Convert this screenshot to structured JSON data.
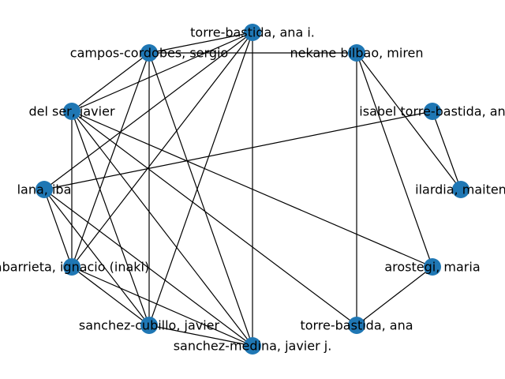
{
  "graph": {
    "colors": {
      "node": "#1f77b4",
      "edge": "#000000",
      "label": "#000000",
      "background": "#ffffff"
    },
    "nodes": [
      {
        "id": "torre_bastida_ana_i",
        "label": "torre-bastida, ana i."
      },
      {
        "id": "campos_cordobes",
        "label": "campos-cordobes, sergio"
      },
      {
        "id": "nekane_bilbao",
        "label": "nekane bilbao, miren"
      },
      {
        "id": "del_ser",
        "label": "del ser, javier"
      },
      {
        "id": "isabel_torre_bastida",
        "label": "isabel torre-bastida, an"
      },
      {
        "id": "lana",
        "label": "lana, iba"
      },
      {
        "id": "ilardia",
        "label": "ilardia, maiten"
      },
      {
        "id": "abarrieta",
        "label": "abarrieta, ignacio (inaki)"
      },
      {
        "id": "arostegi",
        "label": "arostegi, maria"
      },
      {
        "id": "sanchez_cubillo",
        "label": "sanchez-cubillo, javier"
      },
      {
        "id": "torre_bastida_ana",
        "label": "torre-bastida, ana"
      },
      {
        "id": "sanchez_medina",
        "label": "sanchez-medina, javier j."
      }
    ],
    "edges": [
      [
        "torre_bastida_ana_i",
        "campos_cordobes"
      ],
      [
        "torre_bastida_ana_i",
        "del_ser"
      ],
      [
        "torre_bastida_ana_i",
        "lana"
      ],
      [
        "torre_bastida_ana_i",
        "abarrieta"
      ],
      [
        "torre_bastida_ana_i",
        "sanchez_cubillo"
      ],
      [
        "torre_bastida_ana_i",
        "sanchez_medina"
      ],
      [
        "campos_cordobes",
        "nekane_bilbao"
      ],
      [
        "campos_cordobes",
        "del_ser"
      ],
      [
        "campos_cordobes",
        "abarrieta"
      ],
      [
        "campos_cordobes",
        "sanchez_cubillo"
      ],
      [
        "campos_cordobes",
        "sanchez_medina"
      ],
      [
        "nekane_bilbao",
        "ilardia"
      ],
      [
        "nekane_bilbao",
        "arostegi"
      ],
      [
        "nekane_bilbao",
        "torre_bastida_ana"
      ],
      [
        "isabel_torre_bastida",
        "lana"
      ],
      [
        "isabel_torre_bastida",
        "ilardia"
      ],
      [
        "del_ser",
        "abarrieta"
      ],
      [
        "del_ser",
        "sanchez_cubillo"
      ],
      [
        "del_ser",
        "sanchez_medina"
      ],
      [
        "del_ser",
        "arostegi"
      ],
      [
        "del_ser",
        "torre_bastida_ana"
      ],
      [
        "lana",
        "abarrieta"
      ],
      [
        "lana",
        "sanchez_cubillo"
      ],
      [
        "lana",
        "sanchez_medina"
      ],
      [
        "abarrieta",
        "sanchez_cubillo"
      ],
      [
        "abarrieta",
        "sanchez_medina"
      ],
      [
        "sanchez_cubillo",
        "sanchez_medina"
      ],
      [
        "arostegi",
        "torre_bastida_ana"
      ]
    ]
  }
}
